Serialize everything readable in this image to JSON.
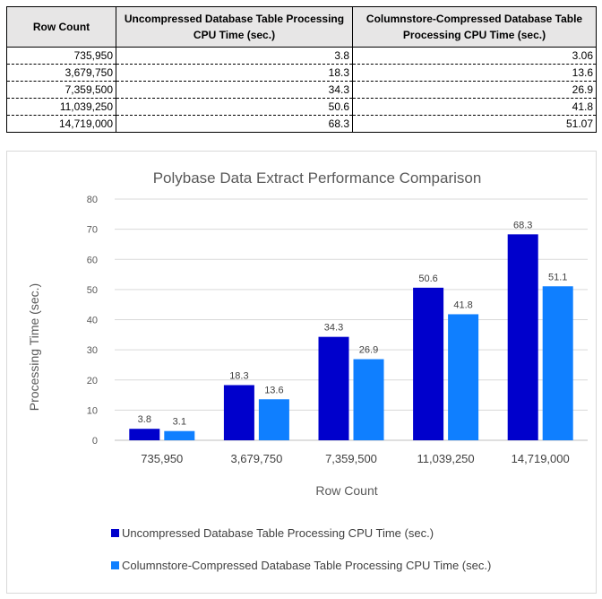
{
  "table": {
    "headers": [
      "Row Count",
      "Uncompressed Database Table Processing CPU Time (sec.)",
      "Columnstore-Compressed Database Table Processing CPU Time (sec.)"
    ],
    "rows": [
      [
        "735,950",
        "3.8",
        "3.06"
      ],
      [
        "3,679,750",
        "18.3",
        "13.6"
      ],
      [
        "7,359,500",
        "34.3",
        "26.9"
      ],
      [
        "11,039,250",
        "50.6",
        "41.8"
      ],
      [
        "14,719,000",
        "68.3",
        "51.07"
      ]
    ]
  },
  "chart_data": {
    "type": "bar",
    "title": "Polybase Data Extract Performance Comparison",
    "xlabel": "Row Count",
    "ylabel": "Processing Time (sec.)",
    "categories": [
      "735,950",
      "3,679,750",
      "7,359,500",
      "11,039,250",
      "14,719,000"
    ],
    "series": [
      {
        "name": "Uncompressed Database Table Processing CPU Time (sec.)",
        "values": [
          3.8,
          18.3,
          34.3,
          50.6,
          68.3
        ],
        "labels": [
          "3.8",
          "18.3",
          "34.3",
          "50.6",
          "68.3"
        ],
        "color": "#0000cc"
      },
      {
        "name": "Columnstore-Compressed Database Table Processing CPU Time (sec.)",
        "values": [
          3.06,
          13.6,
          26.9,
          41.8,
          51.07
        ],
        "labels": [
          "3.1",
          "13.6",
          "26.9",
          "41.8",
          "51.1"
        ],
        "color": "#0f7fff"
      }
    ],
    "ylim": [
      0,
      80
    ],
    "yticks": [
      0,
      10,
      20,
      30,
      40,
      50,
      60,
      70,
      80
    ],
    "grid": true,
    "legend_position": "bottom"
  }
}
